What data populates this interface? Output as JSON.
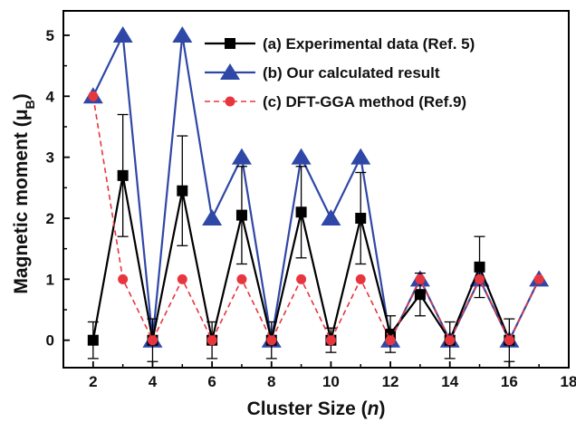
{
  "chart_data": {
    "type": "line",
    "xlabel": "Cluster Size (n)",
    "xlabel_main": "Cluster Size (",
    "xlabel_italic": "n",
    "xlabel_end": ")",
    "ylabel_main": "Magnetic moment (μ",
    "ylabel_sub": "B",
    "ylabel_end": ")",
    "xlim": [
      1,
      18
    ],
    "ylim": [
      -0.45,
      5.4
    ],
    "xticks": [
      2,
      4,
      6,
      8,
      10,
      12,
      14,
      16,
      18
    ],
    "yticks": [
      0,
      1,
      2,
      3,
      4,
      5
    ],
    "grid": false,
    "legend_position": "top-right",
    "series": [
      {
        "name": "(a) Experimental data (Ref. 5)",
        "color": "#000000",
        "marker": "square",
        "line": "solid",
        "x": [
          2,
          3,
          4,
          5,
          6,
          7,
          8,
          9,
          10,
          11,
          12,
          13,
          14,
          15,
          16
        ],
        "y": [
          0,
          2.7,
          0,
          2.45,
          0,
          2.05,
          0,
          2.1,
          0,
          2.0,
          0.1,
          0.75,
          0,
          1.2,
          0
        ],
        "err": [
          0.3,
          1.0,
          0.35,
          0.9,
          0.3,
          0.8,
          0.3,
          0.75,
          0.2,
          0.75,
          0.3,
          0.35,
          0.3,
          0.5,
          0.35
        ]
      },
      {
        "name": "(b) Our calculated result",
        "color": "#2f47a6",
        "marker": "triangle",
        "line": "solid",
        "x": [
          2,
          3,
          4,
          5,
          6,
          7,
          8,
          9,
          10,
          11,
          12,
          13,
          14,
          15,
          16,
          17
        ],
        "y": [
          4,
          5,
          0,
          5,
          2,
          3,
          0,
          3,
          2,
          3,
          0,
          1,
          0,
          1,
          0,
          1
        ]
      },
      {
        "name": "(c) DFT-GGA method (Ref.9)",
        "color": "#e8363f",
        "marker": "circle",
        "line": "dashed",
        "x": [
          2,
          3,
          4,
          5,
          6,
          7,
          8,
          9,
          10,
          11,
          12,
          13,
          14,
          15,
          16,
          17
        ],
        "y": [
          4,
          1,
          0,
          1,
          0,
          1,
          0,
          1,
          0,
          1,
          0,
          1,
          0,
          1,
          0,
          1
        ]
      }
    ]
  }
}
